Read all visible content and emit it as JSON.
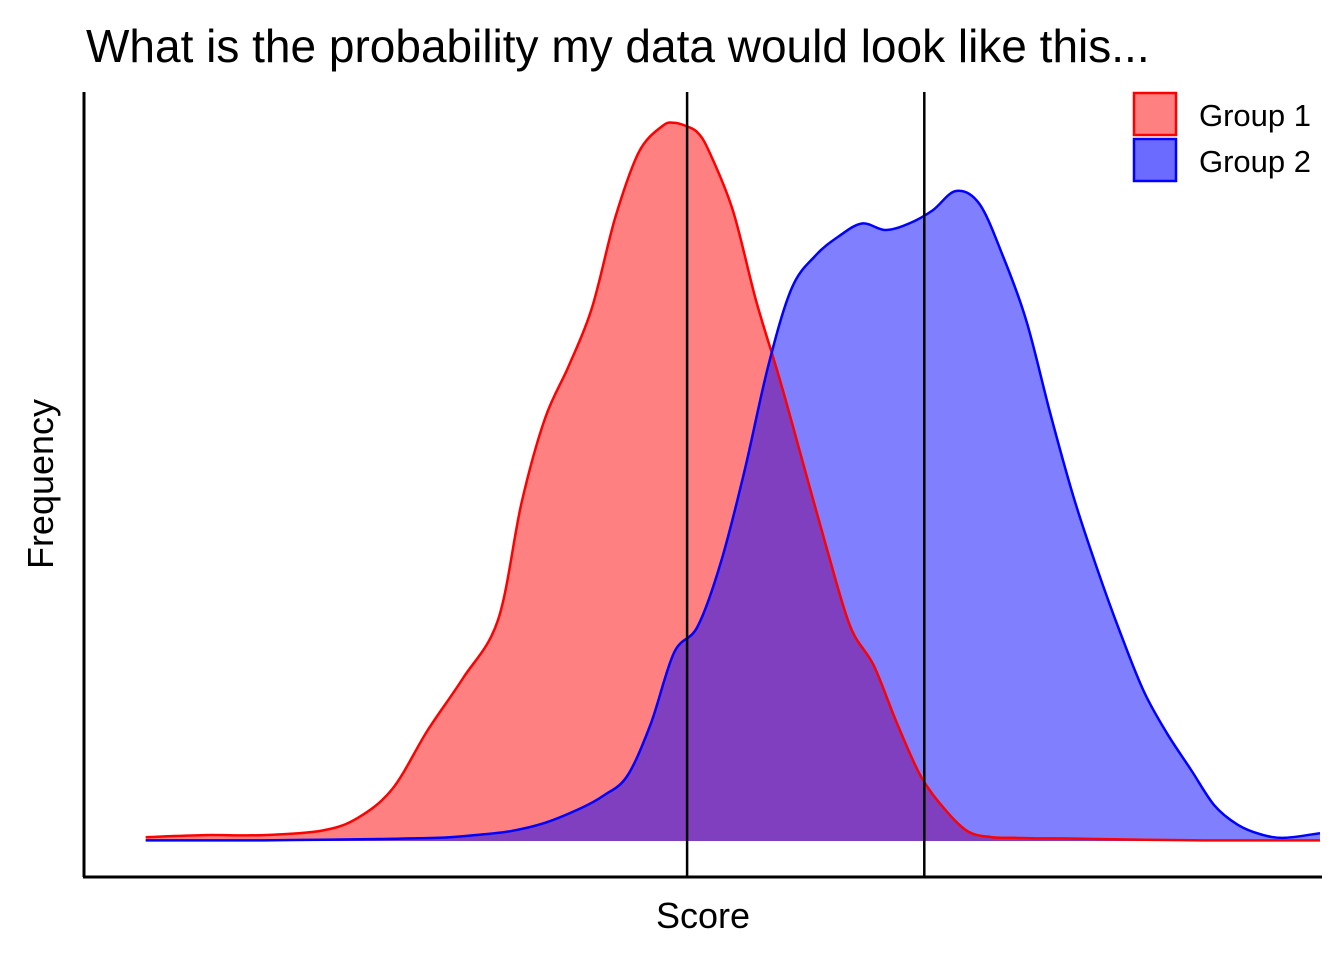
{
  "chart_data": {
    "type": "area",
    "title": "What is the probability my data would look like this...",
    "xlabel": "Score",
    "ylabel": "Frequency",
    "x_ticks": "none",
    "y_ticks": "none",
    "grid": false,
    "legend_position": "top-right",
    "xlim": [
      0,
      10.5
    ],
    "ylim": [
      0,
      1.1
    ],
    "vlines": [
      5.11,
      7.13
    ],
    "series": [
      {
        "name": "Group 1",
        "color": "#ff0000",
        "fill": "#ff8080",
        "x": [
          0.5,
          1.0,
          1.5,
          2.0,
          2.3,
          2.6,
          2.9,
          3.2,
          3.5,
          3.7,
          3.9,
          4.1,
          4.3,
          4.5,
          4.7,
          4.9,
          5.0,
          5.1,
          5.2,
          5.3,
          5.5,
          5.7,
          5.9,
          6.1,
          6.3,
          6.5,
          6.7,
          6.9,
          7.1,
          7.3,
          7.5,
          7.7,
          7.9,
          8.1,
          8.3,
          8.6,
          9.0,
          9.5,
          10.0,
          10.5
        ],
        "y": [
          0.006,
          0.009,
          0.009,
          0.016,
          0.035,
          0.08,
          0.17,
          0.25,
          0.34,
          0.52,
          0.65,
          0.73,
          0.82,
          0.96,
          1.06,
          1.1,
          1.105,
          1.1,
          1.09,
          1.06,
          0.97,
          0.83,
          0.71,
          0.58,
          0.45,
          0.33,
          0.27,
          0.18,
          0.1,
          0.05,
          0.015,
          0.006,
          0.005,
          0.004,
          0.004,
          0.003,
          0.002,
          0.001,
          0.001,
          0.001
        ]
      },
      {
        "name": "Group 2",
        "color": "#0000ff",
        "fill": "#6b6bff",
        "x": [
          0.5,
          1.0,
          1.5,
          2.0,
          2.5,
          3.0,
          3.3,
          3.6,
          3.9,
          4.2,
          4.4,
          4.6,
          4.8,
          5.0,
          5.2,
          5.4,
          5.6,
          5.8,
          6.0,
          6.2,
          6.4,
          6.6,
          6.8,
          7.0,
          7.2,
          7.4,
          7.6,
          7.8,
          8.0,
          8.2,
          8.4,
          8.6,
          8.8,
          9.0,
          9.2,
          9.4,
          9.6,
          9.8,
          10.0,
          10.2,
          10.5
        ],
        "y": [
          0.001,
          0.001,
          0.001,
          0.002,
          0.003,
          0.005,
          0.009,
          0.015,
          0.028,
          0.05,
          0.07,
          0.1,
          0.18,
          0.29,
          0.33,
          0.43,
          0.57,
          0.73,
          0.85,
          0.9,
          0.93,
          0.95,
          0.94,
          0.95,
          0.97,
          1.0,
          0.98,
          0.9,
          0.8,
          0.66,
          0.53,
          0.42,
          0.32,
          0.23,
          0.165,
          0.11,
          0.055,
          0.025,
          0.01,
          0.005,
          0.012
        ]
      }
    ]
  }
}
